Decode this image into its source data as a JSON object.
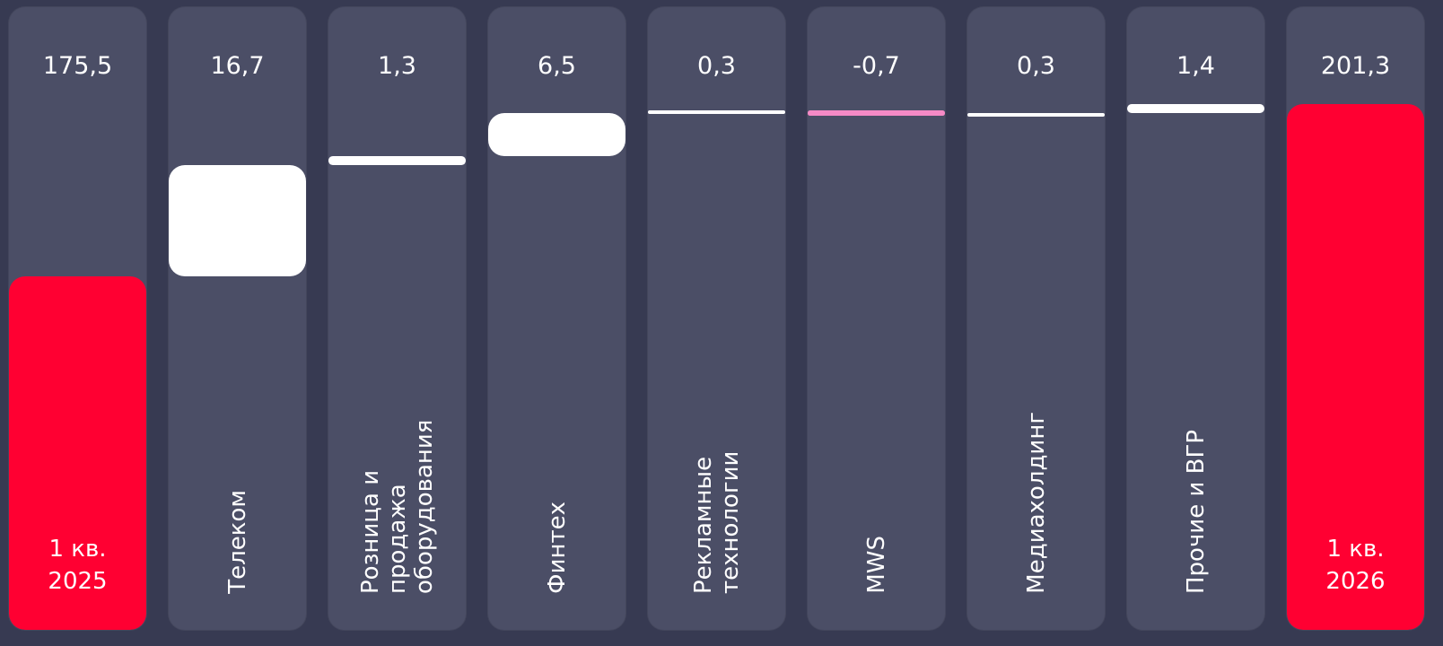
{
  "chart_data": {
    "type": "waterfall",
    "categories": [
      "1 кв. 2025",
      "Телеком",
      "Розница и продажа оборудования",
      "Финтех",
      "Рекламные технологии",
      "MWS",
      "Медиахолдинг",
      "Прочие и ВГР",
      "1 кв. 2026"
    ],
    "values": [
      175.5,
      16.7,
      1.3,
      6.5,
      0.3,
      -0.7,
      0.3,
      1.4,
      201.3
    ],
    "value_labels": [
      "175,5",
      "16,7",
      "1,3",
      "6,5",
      "0,3",
      "-0,7",
      "0,3",
      "1,4",
      "201,3"
    ],
    "is_total": [
      true,
      false,
      false,
      false,
      false,
      false,
      false,
      false,
      true
    ],
    "total_color": "#ff0032",
    "increase_color": "#ffffff",
    "decrease_color": "#f58ac6",
    "ylim": [
      122.6,
      215.8
    ]
  }
}
